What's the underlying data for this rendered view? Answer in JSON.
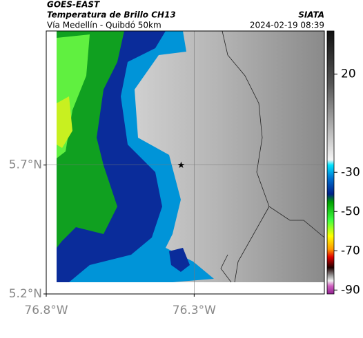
{
  "header": {
    "satellite": "GOES-EAST",
    "product": "Temperatura de Brillo CH13",
    "route": "Vía Medellín - Quibdó 50km",
    "source": "SIATA",
    "datetime": "2024-02-19 08:39"
  },
  "map": {
    "xlim": [
      -76.8,
      -75.86
    ],
    "ylim": [
      5.2,
      6.22
    ],
    "xticks": [
      {
        "value": -76.8,
        "label": "76.8°W"
      },
      {
        "value": -76.3,
        "label": "76.3°W"
      }
    ],
    "yticks": [
      {
        "value": 5.2,
        "label": "5.2°N"
      },
      {
        "value": 5.7,
        "label": "5.7°N"
      }
    ],
    "grid": true,
    "marker": {
      "lon": -76.344,
      "lat": 5.7
    }
  },
  "colorbar": {
    "lim": [
      -92,
      42
    ],
    "ticks": [
      20,
      -30,
      -50,
      -70,
      -90
    ]
  }
}
